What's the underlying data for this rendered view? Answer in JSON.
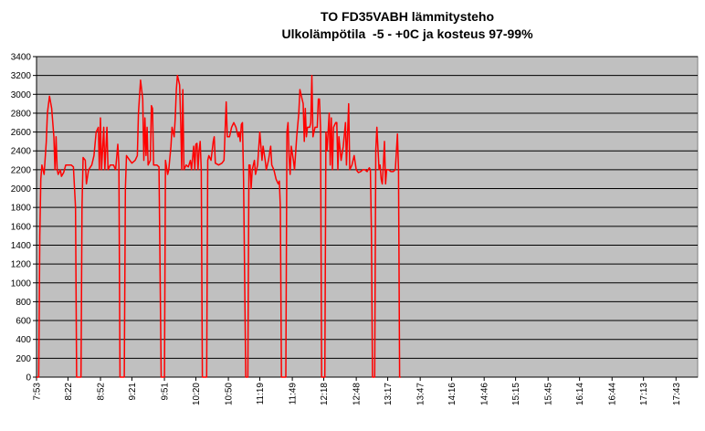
{
  "chart_data": {
    "type": "line",
    "title_lines": [
      "TO FD35VABH lämmitysteho",
      "Ulkolämpötila  -5 - +0C ja kosteus 97-99%"
    ],
    "xlabel": "",
    "ylabel": "",
    "ylim": [
      0,
      3400
    ],
    "yticks": [
      0,
      200,
      400,
      600,
      800,
      1000,
      1200,
      1400,
      1600,
      1800,
      2000,
      2200,
      2400,
      2600,
      2800,
      3000,
      3200,
      3400
    ],
    "x_range": [
      "7:53",
      "18:03"
    ],
    "x_tick_labels": [
      "7:53",
      "8:22",
      "8:52",
      "9:21",
      "9:51",
      "10:20",
      "10:50",
      "11:19",
      "11:49",
      "12:18",
      "12:48",
      "13:17",
      "13:47",
      "14:16",
      "14:46",
      "15:15",
      "15:45",
      "16:14",
      "16:44",
      "17:13",
      "17:43"
    ],
    "grid": true,
    "plot_background": "#c0c0c0",
    "line_color": "#ff0000",
    "series": [
      {
        "points": [
          [
            "7:53",
            0
          ],
          [
            "7:55",
            0
          ],
          [
            "7:56",
            1500
          ],
          [
            "7:57",
            2100
          ],
          [
            "7:58",
            2250
          ],
          [
            "8:00",
            2150
          ],
          [
            "8:02",
            2500
          ],
          [
            "8:03",
            2800
          ],
          [
            "8:05",
            2980
          ],
          [
            "8:07",
            2850
          ],
          [
            "8:09",
            2550
          ],
          [
            "8:10",
            2200
          ],
          [
            "8:11",
            2550
          ],
          [
            "8:12",
            2200
          ],
          [
            "8:13",
            2150
          ],
          [
            "8:15",
            2200
          ],
          [
            "8:16",
            2130
          ],
          [
            "8:18",
            2170
          ],
          [
            "8:20",
            2250
          ],
          [
            "8:25",
            2250
          ],
          [
            "8:27",
            2230
          ],
          [
            "8:29",
            1800
          ],
          [
            "8:30",
            0
          ],
          [
            "8:34",
            0
          ],
          [
            "8:35",
            1800
          ],
          [
            "8:36",
            2330
          ],
          [
            "8:38",
            2300
          ],
          [
            "8:39",
            2050
          ],
          [
            "8:41",
            2200
          ],
          [
            "8:44",
            2250
          ],
          [
            "8:46",
            2350
          ],
          [
            "8:48",
            2600
          ],
          [
            "8:50",
            2650
          ],
          [
            "8:51",
            2200
          ],
          [
            "8:52",
            2750
          ],
          [
            "8:53",
            2200
          ],
          [
            "8:55",
            2650
          ],
          [
            "8:56",
            2200
          ],
          [
            "8:58",
            2650
          ],
          [
            "8:59",
            2200
          ],
          [
            "9:01",
            2250
          ],
          [
            "9:04",
            2250
          ],
          [
            "9:06",
            2200
          ],
          [
            "9:08",
            2470
          ],
          [
            "9:09",
            2250
          ],
          [
            "9:10",
            0
          ],
          [
            "9:14",
            0
          ],
          [
            "9:15",
            2000
          ],
          [
            "9:16",
            2350
          ],
          [
            "9:19",
            2300
          ],
          [
            "9:21",
            2270
          ],
          [
            "9:24",
            2300
          ],
          [
            "9:26",
            2350
          ],
          [
            "9:27",
            2800
          ],
          [
            "9:29",
            3150
          ],
          [
            "9:31",
            2950
          ],
          [
            "9:32",
            2300
          ],
          [
            "9:33",
            2750
          ],
          [
            "9:34",
            2350
          ],
          [
            "9:35",
            2650
          ],
          [
            "9:36",
            2250
          ],
          [
            "9:38",
            2300
          ],
          [
            "9:39",
            2880
          ],
          [
            "9:40",
            2850
          ],
          [
            "9:41",
            2250
          ],
          [
            "9:44",
            2250
          ],
          [
            "9:46",
            2230
          ],
          [
            "9:48",
            0
          ],
          [
            "9:51",
            0
          ],
          [
            "9:52",
            2300
          ],
          [
            "9:54",
            2150
          ],
          [
            "9:55",
            2200
          ],
          [
            "9:57",
            2450
          ],
          [
            "9:58",
            2650
          ],
          [
            "10:00",
            2550
          ],
          [
            "10:01",
            2750
          ],
          [
            "10:02",
            3050
          ],
          [
            "10:03",
            3200
          ],
          [
            "10:05",
            3100
          ],
          [
            "10:06",
            2700
          ],
          [
            "10:07",
            2200
          ],
          [
            "10:08",
            3050
          ],
          [
            "10:09",
            2200
          ],
          [
            "10:11",
            2250
          ],
          [
            "10:13",
            2230
          ],
          [
            "10:15",
            2300
          ],
          [
            "10:16",
            2200
          ],
          [
            "10:18",
            2450
          ],
          [
            "10:19",
            2200
          ],
          [
            "10:20",
            2470
          ],
          [
            "10:21",
            2480
          ],
          [
            "10:22",
            2200
          ],
          [
            "10:23",
            2400
          ],
          [
            "10:24",
            2500
          ],
          [
            "10:25",
            2200
          ],
          [
            "10:26",
            0
          ],
          [
            "10:30",
            0
          ],
          [
            "10:31",
            2300
          ],
          [
            "10:32",
            2350
          ],
          [
            "10:34",
            2300
          ],
          [
            "10:36",
            2500
          ],
          [
            "10:37",
            2550
          ],
          [
            "10:38",
            2270
          ],
          [
            "10:41",
            2250
          ],
          [
            "10:44",
            2270
          ],
          [
            "10:46",
            2300
          ],
          [
            "10:48",
            2920
          ],
          [
            "10:49",
            2550
          ],
          [
            "10:51",
            2550
          ],
          [
            "10:52",
            2600
          ],
          [
            "10:53",
            2650
          ],
          [
            "10:55",
            2700
          ],
          [
            "10:57",
            2650
          ],
          [
            "10:59",
            2550
          ],
          [
            "11:00",
            2600
          ],
          [
            "11:01",
            2500
          ],
          [
            "11:02",
            2680
          ],
          [
            "11:03",
            2700
          ],
          [
            "11:04",
            2100
          ],
          [
            "11:06",
            0
          ],
          [
            "11:08",
            0
          ],
          [
            "11:09",
            2250
          ],
          [
            "11:10",
            2250
          ],
          [
            "11:11",
            2000
          ],
          [
            "11:12",
            2200
          ],
          [
            "11:14",
            2300
          ],
          [
            "11:15",
            2150
          ],
          [
            "11:17",
            2250
          ],
          [
            "11:19",
            2600
          ],
          [
            "11:21",
            2300
          ],
          [
            "11:22",
            2450
          ],
          [
            "11:24",
            2300
          ],
          [
            "11:25",
            2200
          ],
          [
            "11:27",
            2300
          ],
          [
            "11:29",
            2450
          ],
          [
            "11:30",
            2250
          ],
          [
            "11:32",
            2200
          ],
          [
            "11:34",
            2100
          ],
          [
            "11:36",
            2050
          ],
          [
            "11:37",
            2080
          ],
          [
            "11:38",
            1800
          ],
          [
            "11:39",
            0
          ],
          [
            "11:43",
            0
          ],
          [
            "11:44",
            2600
          ],
          [
            "11:45",
            2700
          ],
          [
            "11:46",
            2350
          ],
          [
            "11:47",
            2150
          ],
          [
            "11:48",
            2450
          ],
          [
            "11:50",
            2300
          ],
          [
            "11:51",
            2200
          ],
          [
            "11:53",
            2550
          ],
          [
            "11:55",
            2800
          ],
          [
            "11:56",
            3050
          ],
          [
            "11:58",
            2950
          ],
          [
            "11:59",
            2900
          ],
          [
            "12:00",
            2500
          ],
          [
            "12:01",
            2850
          ],
          [
            "12:02",
            2550
          ],
          [
            "12:03",
            2650
          ],
          [
            "12:05",
            2650
          ],
          [
            "12:06",
            2700
          ],
          [
            "12:07",
            3200
          ],
          [
            "12:08",
            2550
          ],
          [
            "12:09",
            2600
          ],
          [
            "12:10",
            2650
          ],
          [
            "12:12",
            2650
          ],
          [
            "12:13",
            2950
          ],
          [
            "12:14",
            2950
          ],
          [
            "12:15",
            2650
          ],
          [
            "12:16",
            0
          ],
          [
            "12:19",
            0
          ],
          [
            "12:20",
            2600
          ],
          [
            "12:21",
            2400
          ],
          [
            "12:23",
            2800
          ],
          [
            "12:24",
            2250
          ],
          [
            "12:25",
            2750
          ],
          [
            "12:26",
            2200
          ],
          [
            "12:27",
            2650
          ],
          [
            "12:29",
            2700
          ],
          [
            "12:30",
            2700
          ],
          [
            "12:31",
            2200
          ],
          [
            "12:32",
            2550
          ],
          [
            "12:34",
            2300
          ],
          [
            "12:36",
            2450
          ],
          [
            "12:38",
            2700
          ],
          [
            "12:39",
            2250
          ],
          [
            "12:41",
            2900
          ],
          [
            "12:42",
            2200
          ],
          [
            "12:44",
            2250
          ],
          [
            "12:46",
            2350
          ],
          [
            "12:48",
            2200
          ],
          [
            "12:50",
            2170
          ],
          [
            "12:52",
            2180
          ],
          [
            "12:54",
            2200
          ],
          [
            "12:56",
            2200
          ],
          [
            "12:58",
            2180
          ],
          [
            "13:00",
            2220
          ],
          [
            "13:01",
            2200
          ],
          [
            "13:02",
            1550
          ],
          [
            "13:03",
            0
          ],
          [
            "13:05",
            0
          ],
          [
            "13:06",
            2400
          ],
          [
            "13:07",
            2650
          ],
          [
            "13:09",
            2200
          ],
          [
            "13:10",
            2250
          ],
          [
            "13:11",
            2100
          ],
          [
            "13:12",
            2050
          ],
          [
            "13:13",
            2250
          ],
          [
            "13:14",
            2500
          ],
          [
            "13:15",
            2050
          ],
          [
            "13:16",
            2200
          ],
          [
            "13:18",
            2200
          ],
          [
            "13:20",
            2180
          ],
          [
            "13:22",
            2180
          ],
          [
            "13:24",
            2200
          ],
          [
            "13:26",
            2580
          ],
          [
            "13:27",
            2200
          ],
          [
            "13:28",
            0
          ],
          [
            "13:29",
            0
          ]
        ]
      }
    ]
  }
}
